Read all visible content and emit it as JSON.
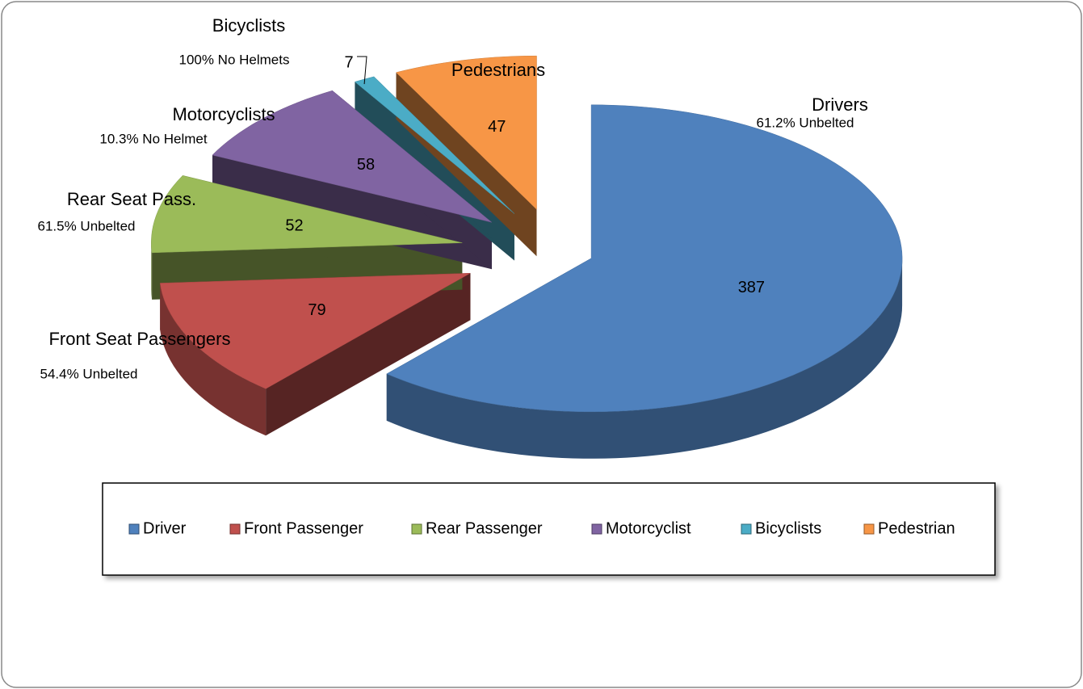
{
  "chart_data": {
    "type": "pie3d",
    "categories": [
      "Driver",
      "Front Passenger",
      "Rear Passenger",
      "Motorcyclist",
      "Bicyclists",
      "Pedestrian"
    ],
    "values": [
      387,
      79,
      52,
      58,
      7,
      47
    ],
    "colors": [
      "#4f81bd",
      "#c0504d",
      "#9bbb59",
      "#8064a2",
      "#4bacc6",
      "#f79646"
    ],
    "annotations": [
      {
        "title": "Drivers",
        "note": "61.2% Unbelted"
      },
      {
        "title": "Front Seat Passengers",
        "note": "54.4% Unbelted"
      },
      {
        "title": "Rear Seat Pass.",
        "note": "61.5% Unbelted"
      },
      {
        "title": "Motorcyclists",
        "note": "10.3% No Helmet"
      },
      {
        "title": "Bicyclists",
        "note": "100% No Helmets"
      },
      {
        "title": "Pedestrians"
      }
    ],
    "legend": true
  }
}
